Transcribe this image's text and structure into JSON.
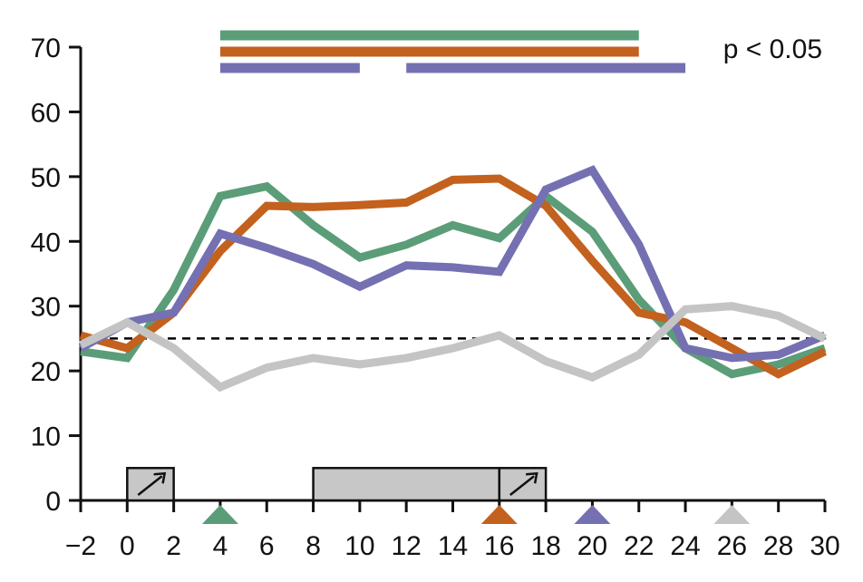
{
  "chart_data": {
    "type": "line",
    "title": "",
    "xlabel": "",
    "ylabel": "",
    "xlim": [
      -2,
      30
    ],
    "ylim": [
      0,
      70
    ],
    "x_ticks": [
      -2,
      0,
      2,
      4,
      6,
      8,
      10,
      12,
      14,
      16,
      18,
      20,
      22,
      24,
      26,
      28,
      30
    ],
    "x_tick_labels": [
      "−2",
      "0",
      "2",
      "4",
      "6",
      "8",
      "10",
      "12",
      "14",
      "16",
      "18",
      "20",
      "22",
      "24",
      "26",
      "28",
      "30"
    ],
    "y_ticks": [
      0,
      10,
      20,
      30,
      40,
      50,
      60,
      70
    ],
    "y_tick_labels": [
      "0",
      "10",
      "20",
      "30",
      "40",
      "50",
      "60",
      "70"
    ],
    "reference_line": {
      "y": 25,
      "style": "dashed",
      "color": "#000000"
    },
    "annotation": "p < 0.05",
    "series": [
      {
        "color": "#5b9d78",
        "x": [
          -2,
          0,
          2,
          4,
          6,
          8,
          10,
          12,
          14,
          16,
          18,
          20,
          22,
          24,
          26,
          28,
          30
        ],
        "y": [
          23,
          22,
          32.5,
          47,
          48.5,
          42.5,
          37.5,
          39.5,
          42.5,
          40.5,
          47,
          41.5,
          31,
          23.5,
          19.5,
          21,
          23.5
        ]
      },
      {
        "color": "#c3611e",
        "x": [
          -2,
          0,
          2,
          4,
          6,
          8,
          10,
          12,
          14,
          16,
          18,
          20,
          22,
          24,
          26,
          28,
          30
        ],
        "y": [
          25.5,
          23.5,
          29,
          38.5,
          45.5,
          45.3,
          45.6,
          46,
          49.5,
          49.7,
          45.5,
          37,
          29,
          27.5,
          23.5,
          19.5,
          23
        ]
      },
      {
        "color": "#7470b2",
        "x": [
          -2,
          0,
          2,
          4,
          6,
          8,
          10,
          12,
          14,
          16,
          18,
          20,
          22,
          24,
          26,
          28,
          30
        ],
        "y": [
          23.5,
          27.5,
          29,
          41.2,
          39,
          36.5,
          33,
          36.3,
          36,
          35.3,
          48,
          51,
          39.5,
          23.5,
          22,
          22.5,
          25.5
        ]
      },
      {
        "color": "#c4c4c4",
        "x": [
          -2,
          0,
          2,
          4,
          6,
          8,
          10,
          12,
          14,
          16,
          18,
          20,
          22,
          24,
          26,
          28,
          30
        ],
        "y": [
          24,
          27.5,
          23.5,
          17.5,
          20.5,
          22,
          21,
          22,
          23.5,
          25.5,
          21.5,
          19,
          22.5,
          29.5,
          30,
          28.5,
          25
        ]
      }
    ],
    "significance_bars": [
      {
        "color": "#5b9d78",
        "segments": [
          [
            4,
            22
          ]
        ]
      },
      {
        "color": "#c3611e",
        "segments": [
          [
            4,
            22
          ]
        ]
      },
      {
        "color": "#7470b2",
        "segments": [
          [
            4,
            10
          ],
          [
            12,
            24
          ]
        ]
      }
    ],
    "event_boxes": [
      {
        "x_start": 0,
        "x_end": 2,
        "arrow": true
      },
      {
        "x_start": 8,
        "x_end": 16,
        "arrow": false
      },
      {
        "x_start": 16,
        "x_end": 18,
        "arrow": true
      }
    ],
    "markers": [
      {
        "x": 4,
        "color": "#5b9d78"
      },
      {
        "x": 16,
        "color": "#c3611e"
      },
      {
        "x": 20,
        "color": "#7470b2"
      },
      {
        "x": 26,
        "color": "#c4c4c4"
      }
    ]
  }
}
